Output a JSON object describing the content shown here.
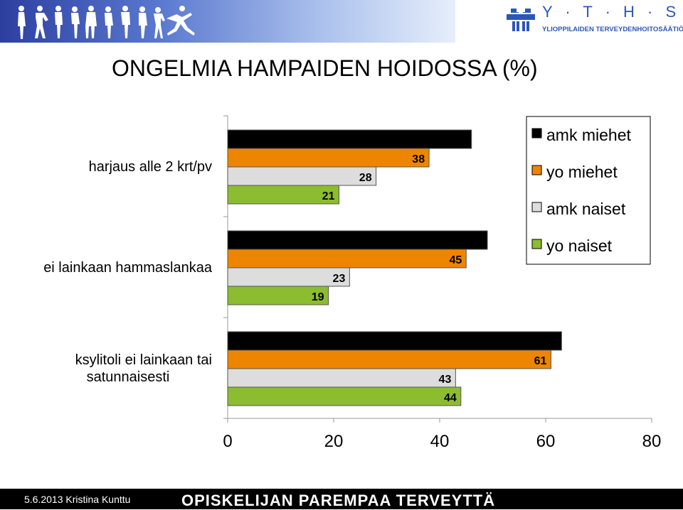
{
  "header": {
    "logo_letters": "Y · T · H · S",
    "logo_subtitle": "YLIOPPILAIDEN TERVEYDENHOITOSÄÄTIÖ"
  },
  "colors": {
    "amk_miehet": "#000000",
    "yo_miehet": "#ee8500",
    "amk_naiset": "#dddddd",
    "yo_naiset": "#8cbc30",
    "banner": "#4a66c4",
    "logo": "#2b57b8"
  },
  "chart_data": {
    "type": "bar",
    "orientation": "horizontal",
    "title": "ONGELMIA HAMPAIDEN HOIDOSSA (%)",
    "categories": [
      "harjaus alle 2 krt/pv",
      "ei lainkaan hammaslankaa",
      "ksylitoli ei lainkaan tai satunnaisesti"
    ],
    "category_lines": [
      [
        "harjaus alle 2 krt/pv"
      ],
      [
        "ei lainkaan hammaslankaa"
      ],
      [
        "ksylitoli ei lainkaan tai",
        "satunnaisesti"
      ]
    ],
    "series": [
      {
        "name": "amk miehet",
        "values": [
          46,
          49,
          63
        ]
      },
      {
        "name": "yo miehet",
        "values": [
          38,
          45,
          61
        ]
      },
      {
        "name": "amk naiset",
        "values": [
          28,
          23,
          43
        ]
      },
      {
        "name": "yo naiset",
        "values": [
          21,
          19,
          44
        ]
      }
    ],
    "xlim": [
      0,
      80
    ],
    "xticks": [
      0,
      20,
      40,
      60,
      80
    ],
    "xlabel": "",
    "ylabel": "",
    "grid": false,
    "legend_position": "top-right"
  },
  "footer": {
    "date_author": "5.6.2013 Kristina Kunttu",
    "slogan": "OPISKELIJAN PAREMPAA TERVEYTTÄ"
  }
}
